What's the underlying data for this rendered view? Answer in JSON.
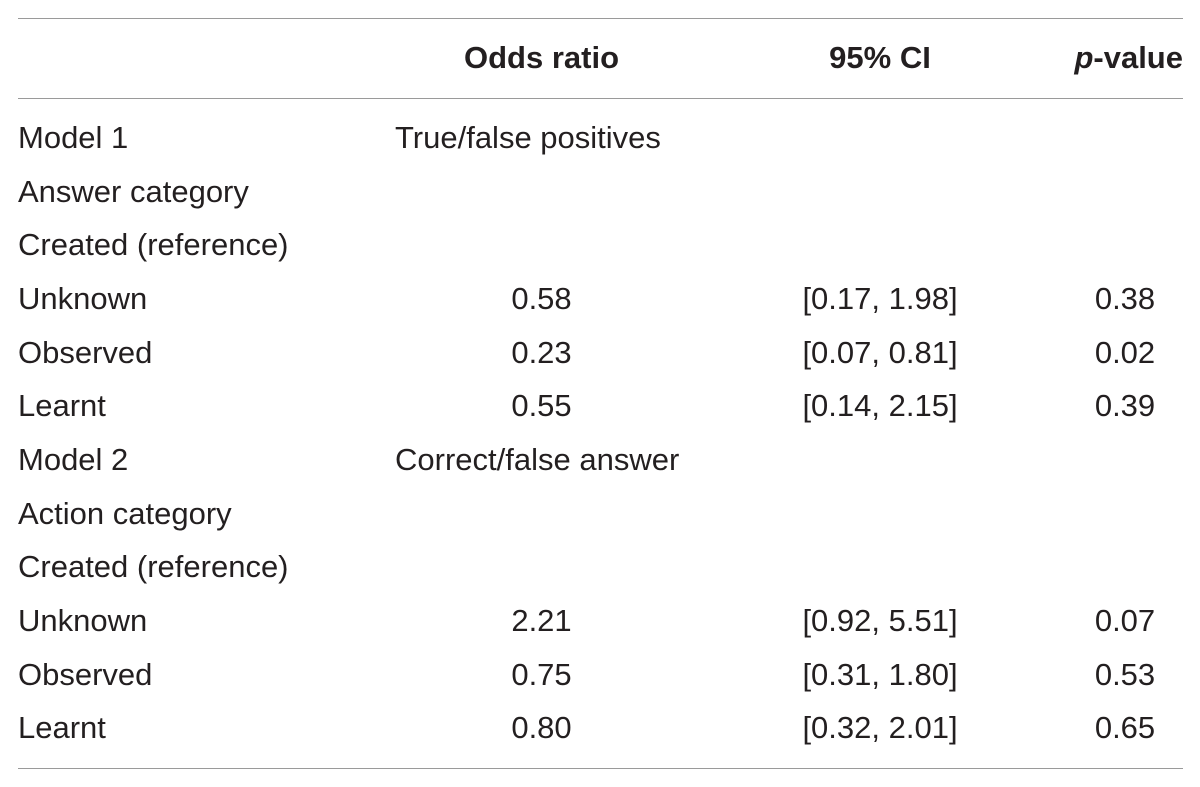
{
  "header": {
    "odds_ratio": "Odds ratio",
    "ci": "95% CI",
    "p_italic": "p",
    "p_rest": "-value"
  },
  "rows": [
    {
      "label": "Model 1",
      "group": "True/false positives",
      "or": "",
      "ci": "",
      "p": ""
    },
    {
      "label": "Answer category",
      "group": "",
      "or": "",
      "ci": "",
      "p": ""
    },
    {
      "label": "Created (reference)",
      "group": "",
      "or": "",
      "ci": "",
      "p": ""
    },
    {
      "label": "Unknown",
      "group": "",
      "or": "0.58",
      "ci": "[0.17, 1.98]",
      "p": "0.38"
    },
    {
      "label": "Observed",
      "group": "",
      "or": "0.23",
      "ci": "[0.07, 0.81]",
      "p": "0.02"
    },
    {
      "label": "Learnt",
      "group": "",
      "or": "0.55",
      "ci": "[0.14, 2.15]",
      "p": "0.39"
    },
    {
      "label": "Model 2",
      "group": "Correct/false answer",
      "or": "",
      "ci": "",
      "p": ""
    },
    {
      "label": "Action category",
      "group": "",
      "or": "",
      "ci": "",
      "p": ""
    },
    {
      "label": "Created (reference)",
      "group": "",
      "or": "",
      "ci": "",
      "p": ""
    },
    {
      "label": "Unknown",
      "group": "",
      "or": "2.21",
      "ci": "[0.92, 5.51]",
      "p": "0.07"
    },
    {
      "label": "Observed",
      "group": "",
      "or": "0.75",
      "ci": "[0.31, 1.80]",
      "p": "0.53"
    },
    {
      "label": "Learnt",
      "group": "",
      "or": "0.80",
      "ci": "[0.32, 2.01]",
      "p": "0.65"
    }
  ]
}
